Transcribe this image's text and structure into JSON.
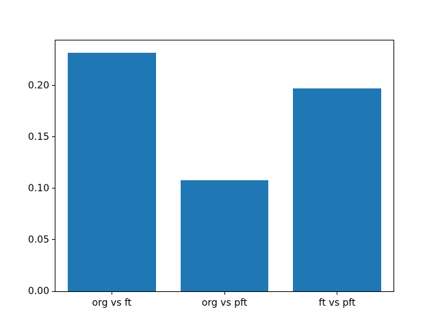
{
  "chart_data": {
    "type": "bar",
    "categories": [
      "org vs ft",
      "org vs pft",
      "ft vs pft"
    ],
    "values": [
      0.232,
      0.108,
      0.197
    ],
    "title": "",
    "xlabel": "",
    "ylabel": "",
    "ylim": [
      0,
      0.2437
    ],
    "yticks": [
      0.0,
      0.05,
      0.1,
      0.15,
      0.2
    ],
    "ytick_labels": [
      "0.00",
      "0.05",
      "0.10",
      "0.15",
      "0.20"
    ],
    "bar_color": "#1f77b4",
    "bar_width_fraction": 0.78,
    "grid": false,
    "legend": "none"
  }
}
